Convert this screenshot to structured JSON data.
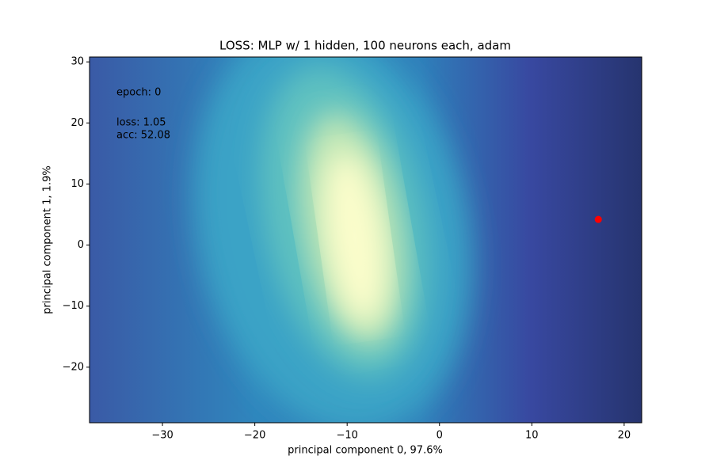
{
  "chart_data": {
    "type": "scatter",
    "title": "LOSS: MLP w/ 1 hidden, 100 neurons each, adam",
    "xlabel": "principal component 0, 97.6%",
    "ylabel": "principal component 1, 1.9%",
    "annotations": [
      "epoch: 0",
      "loss:  1.05",
      "acc:  52.08"
    ],
    "x": [
      17.2
    ],
    "y": [
      4.2
    ],
    "color": "#ff0000",
    "xlim": [
      -37.9,
      21.9
    ],
    "ylim": [
      -29.1,
      30.8
    ],
    "xticks": [
      {
        "value": -30,
        "label": "−30"
      },
      {
        "value": -20,
        "label": "−20"
      },
      {
        "value": -10,
        "label": "−10"
      },
      0,
      10,
      20
    ],
    "yticks": [
      {
        "value": -20,
        "label": "−20"
      },
      {
        "value": -10,
        "label": "−10"
      },
      0,
      10,
      20,
      30
    ]
  }
}
